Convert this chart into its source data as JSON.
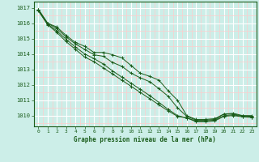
{
  "bg_color": "#cceee8",
  "grid_major_color": "#ffffff",
  "grid_minor_color": "#ffcccc",
  "line_color": "#1a5c1a",
  "xlabel": "Graphe pression niveau de la mer (hPa)",
  "xlim": [
    -0.5,
    23.5
  ],
  "ylim": [
    1009.3,
    1017.4
  ],
  "yticks": [
    1010,
    1011,
    1012,
    1013,
    1014,
    1015,
    1016,
    1017
  ],
  "xticks": [
    0,
    1,
    2,
    3,
    4,
    5,
    6,
    7,
    8,
    9,
    10,
    11,
    12,
    13,
    14,
    15,
    16,
    17,
    18,
    19,
    20,
    21,
    22,
    23
  ],
  "series": [
    [
      1016.9,
      1016.0,
      1015.75,
      1015.2,
      1014.75,
      1014.5,
      1014.1,
      1014.1,
      1013.95,
      1013.75,
      1013.25,
      1012.75,
      1012.55,
      1012.3,
      1011.6,
      1011.0,
      1010.0,
      1009.75,
      1009.75,
      1009.8,
      1010.1,
      1010.15,
      1010.0,
      1010.0
    ],
    [
      1016.9,
      1016.0,
      1015.65,
      1015.1,
      1014.65,
      1014.3,
      1013.95,
      1013.85,
      1013.45,
      1013.2,
      1012.75,
      1012.45,
      1012.2,
      1011.75,
      1011.25,
      1010.5,
      1009.95,
      1009.7,
      1009.7,
      1009.75,
      1010.1,
      1010.1,
      1009.98,
      1009.95
    ],
    [
      1016.85,
      1015.95,
      1015.5,
      1014.95,
      1014.45,
      1014.0,
      1013.7,
      1013.35,
      1012.9,
      1012.5,
      1012.1,
      1011.7,
      1011.3,
      1010.85,
      1010.4,
      1010.0,
      1009.85,
      1009.65,
      1009.65,
      1009.7,
      1010.0,
      1010.05,
      1009.95,
      1009.9
    ],
    [
      1016.8,
      1015.9,
      1015.4,
      1014.8,
      1014.3,
      1013.8,
      1013.5,
      1013.1,
      1012.7,
      1012.3,
      1011.9,
      1011.5,
      1011.1,
      1010.7,
      1010.3,
      1009.95,
      1009.85,
      1009.6,
      1009.6,
      1009.65,
      1009.95,
      1010.0,
      1009.92,
      1009.88
    ]
  ]
}
